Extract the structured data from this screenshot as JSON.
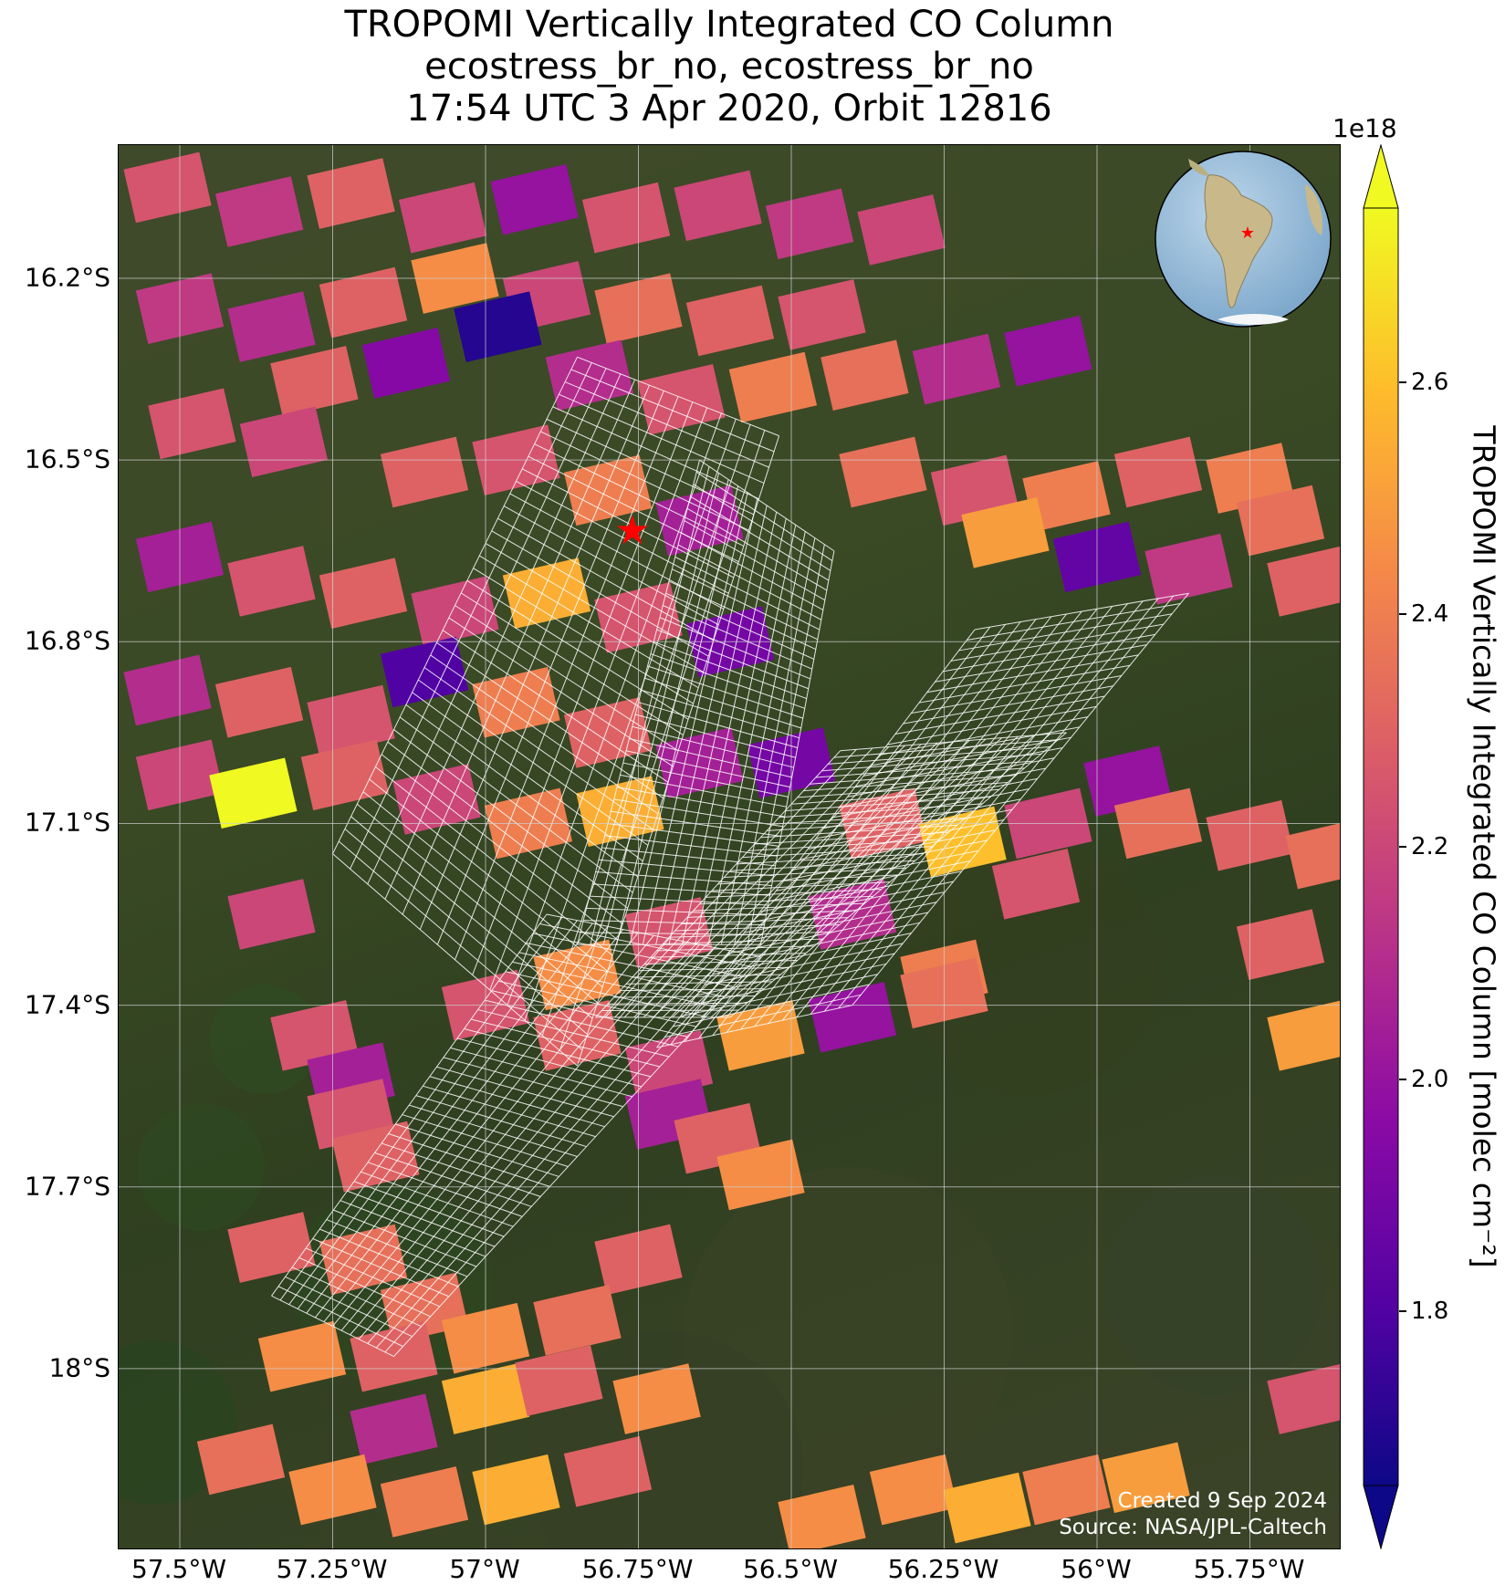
{
  "title": {
    "line1": "TROPOMI Vertically Integrated CO Column",
    "line2": "ecostress_br_no, ecostress_br_no",
    "line3": "17:54 UTC 3 Apr 2020, Orbit 12816"
  },
  "map": {
    "lon_range": [
      -57.6,
      -55.6
    ],
    "lat_range": [
      -18.3,
      -15.98
    ],
    "basemap": "satellite-imagery",
    "gridlines": true,
    "lat_ticks": [
      {
        "value": -16.2,
        "label": "16.2°S"
      },
      {
        "value": -16.5,
        "label": "16.5°S"
      },
      {
        "value": -16.8,
        "label": "16.8°S"
      },
      {
        "value": -17.1,
        "label": "17.1°S"
      },
      {
        "value": -17.4,
        "label": "17.4°S"
      },
      {
        "value": -17.7,
        "label": "17.7°S"
      },
      {
        "value": -18.0,
        "label": "18°S"
      }
    ],
    "lon_ticks": [
      {
        "value": -57.5,
        "label": "57.5°W"
      },
      {
        "value": -57.25,
        "label": "57.25°W"
      },
      {
        "value": -57.0,
        "label": "57°W"
      },
      {
        "value": -56.75,
        "label": "56.75°W"
      },
      {
        "value": -56.5,
        "label": "56.5°W"
      },
      {
        "value": -56.25,
        "label": "56.25°W"
      },
      {
        "value": -56.0,
        "label": "56°W"
      },
      {
        "value": -55.75,
        "label": "55.75°W"
      }
    ],
    "target_marker": {
      "lon": -56.76,
      "lat": -16.62,
      "color": "#ff0000",
      "shape": "star"
    },
    "grid_outline_color": "#ffffff"
  },
  "colorbar": {
    "exponent_label": "1e18",
    "label": "TROPOMI Vertically Integrated CO Column [molec cm⁻²]",
    "range": [
      1.65,
      2.75
    ],
    "ticks": [
      {
        "value": 1.8,
        "label": "1.8"
      },
      {
        "value": 2.0,
        "label": "2.0"
      },
      {
        "value": 2.2,
        "label": "2.2"
      },
      {
        "value": 2.4,
        "label": "2.4"
      },
      {
        "value": 2.6,
        "label": "2.6"
      }
    ],
    "colormap": "plasma",
    "extend": "both"
  },
  "inset_globe": {
    "centered_on": "South America",
    "marker_color": "#ff0000"
  },
  "credit": {
    "line1": "Created 9 Sep 2024",
    "line2": "Source: NASA/JPL-Caltech"
  },
  "chart_data": {
    "type": "heatmap",
    "variable": "CO column (×1e18 molec cm⁻²)",
    "pixels": [
      {
        "lon": -57.52,
        "lat": -16.05,
        "value": 2.25
      },
      {
        "lon": -57.37,
        "lat": -16.09,
        "value": 2.15
      },
      {
        "lon": -57.22,
        "lat": -16.06,
        "value": 2.3
      },
      {
        "lon": -57.07,
        "lat": -16.1,
        "value": 2.2
      },
      {
        "lon": -56.92,
        "lat": -16.07,
        "value": 2.0
      },
      {
        "lon": -56.77,
        "lat": -16.1,
        "value": 2.25
      },
      {
        "lon": -56.62,
        "lat": -16.08,
        "value": 2.2
      },
      {
        "lon": -56.47,
        "lat": -16.11,
        "value": 2.15
      },
      {
        "lon": -56.32,
        "lat": -16.12,
        "value": 2.2
      },
      {
        "lon": -57.5,
        "lat": -16.25,
        "value": 2.15
      },
      {
        "lon": -57.35,
        "lat": -16.28,
        "value": 2.1
      },
      {
        "lon": -57.2,
        "lat": -16.24,
        "value": 2.3
      },
      {
        "lon": -57.05,
        "lat": -16.2,
        "value": 2.45
      },
      {
        "lon": -56.9,
        "lat": -16.23,
        "value": 2.2
      },
      {
        "lon": -56.75,
        "lat": -16.25,
        "value": 2.35
      },
      {
        "lon": -56.6,
        "lat": -16.27,
        "value": 2.3
      },
      {
        "lon": -56.45,
        "lat": -16.26,
        "value": 2.25
      },
      {
        "lon": -57.28,
        "lat": -16.37,
        "value": 2.3
      },
      {
        "lon": -57.13,
        "lat": -16.34,
        "value": 1.95
      },
      {
        "lon": -56.98,
        "lat": -16.28,
        "value": 1.7
      },
      {
        "lon": -56.83,
        "lat": -16.36,
        "value": 2.1
      },
      {
        "lon": -56.68,
        "lat": -16.4,
        "value": 2.25
      },
      {
        "lon": -56.53,
        "lat": -16.38,
        "value": 2.4
      },
      {
        "lon": -56.38,
        "lat": -16.36,
        "value": 2.35
      },
      {
        "lon": -56.23,
        "lat": -16.35,
        "value": 2.1
      },
      {
        "lon": -56.08,
        "lat": -16.32,
        "value": 2.0
      },
      {
        "lon": -57.48,
        "lat": -16.44,
        "value": 2.25
      },
      {
        "lon": -57.33,
        "lat": -16.47,
        "value": 2.2
      },
      {
        "lon": -57.1,
        "lat": -16.52,
        "value": 2.3
      },
      {
        "lon": -56.95,
        "lat": -16.5,
        "value": 2.25
      },
      {
        "lon": -56.8,
        "lat": -16.55,
        "value": 2.4
      },
      {
        "lon": -56.65,
        "lat": -16.6,
        "value": 2.05
      },
      {
        "lon": -56.35,
        "lat": -16.52,
        "value": 2.35
      },
      {
        "lon": -56.2,
        "lat": -16.55,
        "value": 2.25
      },
      {
        "lon": -56.05,
        "lat": -16.56,
        "value": 2.4
      },
      {
        "lon": -55.9,
        "lat": -16.52,
        "value": 2.3
      },
      {
        "lon": -55.75,
        "lat": -16.53,
        "value": 2.4
      },
      {
        "lon": -56.15,
        "lat": -16.62,
        "value": 2.5
      },
      {
        "lon": -56.0,
        "lat": -16.66,
        "value": 1.85
      },
      {
        "lon": -55.85,
        "lat": -16.68,
        "value": 2.15
      },
      {
        "lon": -55.7,
        "lat": -16.6,
        "value": 2.35
      },
      {
        "lon": -55.65,
        "lat": -16.7,
        "value": 2.3
      },
      {
        "lon": -57.5,
        "lat": -16.66,
        "value": 2.05
      },
      {
        "lon": -57.35,
        "lat": -16.7,
        "value": 2.25
      },
      {
        "lon": -57.2,
        "lat": -16.72,
        "value": 2.3
      },
      {
        "lon": -57.05,
        "lat": -16.75,
        "value": 2.2
      },
      {
        "lon": -56.9,
        "lat": -16.72,
        "value": 2.55
      },
      {
        "lon": -56.75,
        "lat": -16.76,
        "value": 2.25
      },
      {
        "lon": -56.6,
        "lat": -16.8,
        "value": 1.9
      },
      {
        "lon": -57.52,
        "lat": -16.88,
        "value": 2.1
      },
      {
        "lon": -57.37,
        "lat": -16.9,
        "value": 2.3
      },
      {
        "lon": -57.22,
        "lat": -16.93,
        "value": 2.25
      },
      {
        "lon": -57.1,
        "lat": -16.85,
        "value": 1.8
      },
      {
        "lon": -56.95,
        "lat": -16.9,
        "value": 2.4
      },
      {
        "lon": -56.8,
        "lat": -16.95,
        "value": 2.3
      },
      {
        "lon": -56.65,
        "lat": -17.0,
        "value": 2.05
      },
      {
        "lon": -57.5,
        "lat": -17.02,
        "value": 2.2
      },
      {
        "lon": -57.38,
        "lat": -17.05,
        "value": 2.75
      },
      {
        "lon": -57.23,
        "lat": -17.02,
        "value": 2.3
      },
      {
        "lon": -57.08,
        "lat": -17.06,
        "value": 2.2
      },
      {
        "lon": -56.93,
        "lat": -17.1,
        "value": 2.4
      },
      {
        "lon": -56.78,
        "lat": -17.08,
        "value": 2.55
      },
      {
        "lon": -56.5,
        "lat": -17.0,
        "value": 1.9
      },
      {
        "lon": -56.35,
        "lat": -17.1,
        "value": 2.3
      },
      {
        "lon": -56.22,
        "lat": -17.13,
        "value": 2.6
      },
      {
        "lon": -56.08,
        "lat": -17.1,
        "value": 2.2
      },
      {
        "lon": -55.95,
        "lat": -17.03,
        "value": 2.0
      },
      {
        "lon": -55.9,
        "lat": -17.1,
        "value": 2.35
      },
      {
        "lon": -55.75,
        "lat": -17.12,
        "value": 2.3
      },
      {
        "lon": -55.62,
        "lat": -17.15,
        "value": 2.35
      },
      {
        "lon": -57.35,
        "lat": -17.25,
        "value": 2.2
      },
      {
        "lon": -56.85,
        "lat": -17.35,
        "value": 2.45
      },
      {
        "lon": -56.7,
        "lat": -17.28,
        "value": 2.25
      },
      {
        "lon": -56.4,
        "lat": -17.25,
        "value": 2.1
      },
      {
        "lon": -56.25,
        "lat": -17.35,
        "value": 2.4
      },
      {
        "lon": -56.1,
        "lat": -17.2,
        "value": 2.25
      },
      {
        "lon": -55.7,
        "lat": -17.3,
        "value": 2.3
      },
      {
        "lon": -55.65,
        "lat": -17.45,
        "value": 2.5
      },
      {
        "lon": -57.0,
        "lat": -17.4,
        "value": 2.25
      },
      {
        "lon": -56.85,
        "lat": -17.45,
        "value": 2.3
      },
      {
        "lon": -56.7,
        "lat": -17.5,
        "value": 2.2
      },
      {
        "lon": -56.55,
        "lat": -17.45,
        "value": 2.5
      },
      {
        "lon": -56.4,
        "lat": -17.42,
        "value": 2.0
      },
      {
        "lon": -56.25,
        "lat": -17.38,
        "value": 2.35
      },
      {
        "lon": -57.28,
        "lat": -17.45,
        "value": 2.25
      },
      {
        "lon": -57.22,
        "lat": -17.52,
        "value": 2.05
      },
      {
        "lon": -57.22,
        "lat": -17.58,
        "value": 2.25
      },
      {
        "lon": -57.18,
        "lat": -17.65,
        "value": 2.3
      },
      {
        "lon": -56.7,
        "lat": -17.58,
        "value": 2.05
      },
      {
        "lon": -56.62,
        "lat": -17.62,
        "value": 2.3
      },
      {
        "lon": -56.55,
        "lat": -17.68,
        "value": 2.45
      },
      {
        "lon": -57.35,
        "lat": -17.8,
        "value": 2.3
      },
      {
        "lon": -57.2,
        "lat": -17.82,
        "value": 2.35
      },
      {
        "lon": -56.75,
        "lat": -17.82,
        "value": 2.3
      },
      {
        "lon": -57.1,
        "lat": -17.9,
        "value": 2.35
      },
      {
        "lon": -57.3,
        "lat": -17.98,
        "value": 2.45
      },
      {
        "lon": -57.15,
        "lat": -17.98,
        "value": 2.3
      },
      {
        "lon": -57.0,
        "lat": -17.95,
        "value": 2.45
      },
      {
        "lon": -56.85,
        "lat": -17.92,
        "value": 2.35
      },
      {
        "lon": -57.15,
        "lat": -18.1,
        "value": 2.1
      },
      {
        "lon": -57.0,
        "lat": -18.05,
        "value": 2.55
      },
      {
        "lon": -56.88,
        "lat": -18.02,
        "value": 2.3
      },
      {
        "lon": -57.4,
        "lat": -18.15,
        "value": 2.35
      },
      {
        "lon": -57.25,
        "lat": -18.2,
        "value": 2.45
      },
      {
        "lon": -57.1,
        "lat": -18.22,
        "value": 2.4
      },
      {
        "lon": -56.95,
        "lat": -18.2,
        "value": 2.55
      },
      {
        "lon": -56.8,
        "lat": -18.17,
        "value": 2.3
      },
      {
        "lon": -56.72,
        "lat": -18.05,
        "value": 2.45
      },
      {
        "lon": -56.3,
        "lat": -18.2,
        "value": 2.45
      },
      {
        "lon": -56.18,
        "lat": -18.23,
        "value": 2.55
      },
      {
        "lon": -56.05,
        "lat": -18.2,
        "value": 2.4
      },
      {
        "lon": -55.92,
        "lat": -18.18,
        "value": 2.5
      },
      {
        "lon": -55.65,
        "lat": -18.05,
        "value": 2.25
      },
      {
        "lon": -56.45,
        "lat": -18.25,
        "value": 2.45
      }
    ],
    "swaths": [
      {
        "name": "swath-a",
        "corners": [
          [
            -56.85,
            -16.33
          ],
          [
            -56.52,
            -16.46
          ],
          [
            -56.85,
            -17.5
          ],
          [
            -57.25,
            -17.15
          ]
        ]
      },
      {
        "name": "swath-b",
        "corners": [
          [
            -56.65,
            -16.5
          ],
          [
            -56.43,
            -16.65
          ],
          [
            -56.55,
            -17.3
          ],
          [
            -56.85,
            -17.3
          ]
        ]
      },
      {
        "name": "swath-c",
        "corners": [
          [
            -56.2,
            -16.78
          ],
          [
            -55.85,
            -16.72
          ],
          [
            -56.4,
            -17.4
          ],
          [
            -56.72,
            -17.47
          ]
        ]
      },
      {
        "name": "swath-d",
        "corners": [
          [
            -56.9,
            -17.25
          ],
          [
            -56.55,
            -17.32
          ],
          [
            -57.15,
            -17.98
          ],
          [
            -57.35,
            -17.88
          ]
        ]
      },
      {
        "name": "swath-e",
        "corners": [
          [
            -56.42,
            -16.98
          ],
          [
            -56.05,
            -16.95
          ],
          [
            -56.6,
            -17.42
          ],
          [
            -56.82,
            -17.42
          ]
        ]
      }
    ]
  }
}
